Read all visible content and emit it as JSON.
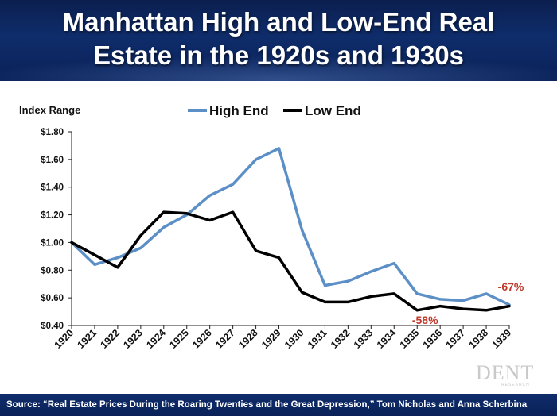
{
  "title_line1": "Manhattan High and Low-End Real",
  "title_line2": "Estate in the 1920s and 1930s",
  "source": "Source: “Real Estate Prices During the Roaring Twenties and the Great Depression,” Tom Nicholas and Anna Scherbina",
  "logo": "DENT",
  "logo_sub": "RESEARCH",
  "colors": {
    "banner": "#0f2d6b",
    "high_end": "#5b8fc6",
    "low_end": "#000000",
    "annotation": "#c0392b"
  },
  "chart_data": {
    "type": "line",
    "ylabel": "Index Range",
    "x": [
      "1920",
      "1921",
      "1922",
      "1923",
      "1924",
      "1925",
      "1926",
      "1927",
      "1928",
      "1929",
      "1930",
      "1931",
      "1932",
      "1933",
      "1934",
      "1935",
      "1936",
      "1937",
      "1938",
      "1939"
    ],
    "ylim": [
      0.4,
      1.8
    ],
    "yticks": [
      {
        "value": 0.4,
        "label": "$0.40"
      },
      {
        "value": 0.6,
        "label": "$0.60"
      },
      {
        "value": 0.8,
        "label": "$0.80"
      },
      {
        "value": 1.0,
        "label": "$1.00"
      },
      {
        "value": 1.2,
        "label": "$1.20"
      },
      {
        "value": 1.4,
        "label": "$1.40"
      },
      {
        "value": 1.6,
        "label": "$1.60"
      },
      {
        "value": 1.8,
        "label": "$1.80"
      }
    ],
    "legend_position": "top",
    "grid": false,
    "series": [
      {
        "name": "High End",
        "color": "#5b8fc6",
        "width": 3.5,
        "values": [
          1.0,
          0.84,
          0.89,
          0.96,
          1.11,
          1.2,
          1.34,
          1.42,
          1.6,
          1.68,
          1.09,
          0.69,
          0.72,
          0.79,
          0.85,
          0.63,
          0.59,
          0.58,
          0.63,
          0.55
        ]
      },
      {
        "name": "Low End",
        "color": "#000000",
        "width": 3.5,
        "values": [
          1.0,
          0.91,
          0.82,
          1.05,
          1.22,
          1.21,
          1.16,
          1.22,
          0.94,
          0.89,
          0.64,
          0.57,
          0.57,
          0.61,
          0.63,
          0.51,
          0.54,
          0.52,
          0.51,
          0.54
        ]
      }
    ],
    "annotations": [
      {
        "text": "-67%",
        "x": "1939",
        "y": 0.68,
        "series": "High End"
      },
      {
        "text": "-58%",
        "x": "1935",
        "y": 0.44,
        "series": "Low End"
      }
    ]
  }
}
